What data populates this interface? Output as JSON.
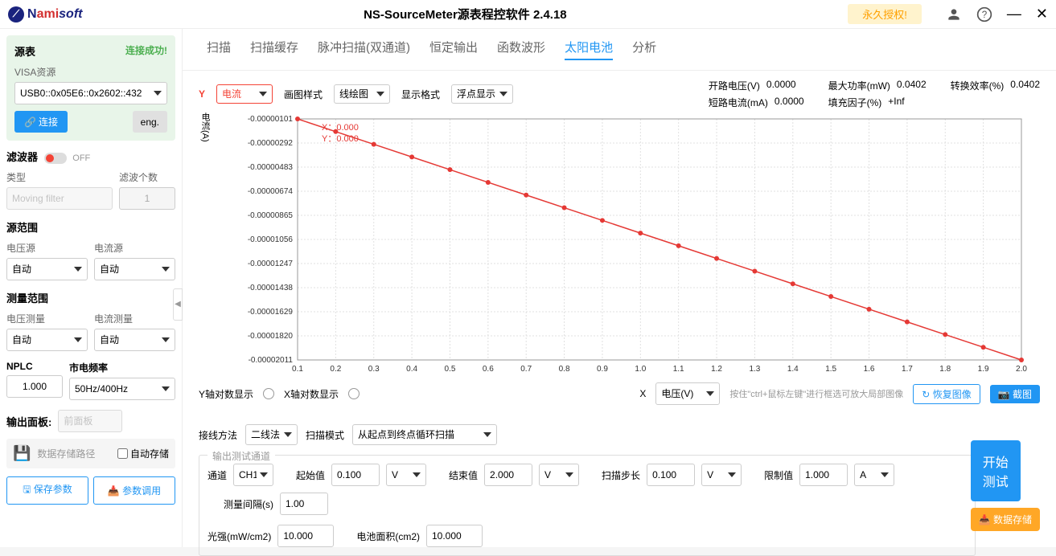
{
  "titlebar": {
    "logo_n": "N",
    "logo_ami": "ami",
    "logo_soft": "soft",
    "app_title": "NS-SourceMeter源表程控软件 2.4.18",
    "license": "永久授权!"
  },
  "sidebar": {
    "source_table": "源表",
    "conn_success": "连接成功!",
    "visa_label": "VISA资源",
    "visa_value": "USB0::0x05E6::0x2602::432",
    "connect_btn": "连接",
    "lang_btn": "eng.",
    "filter": "滤波器",
    "filter_off": "OFF",
    "type_label": "类型",
    "type_value": "Moving filter",
    "filter_count_label": "滤波个数",
    "filter_count_value": "1",
    "source_range": "源范围",
    "vsource_label": "电压源",
    "vsource_value": "自动",
    "isource_label": "电流源",
    "isource_value": "自动",
    "measure_range": "测量范围",
    "vmeas_label": "电压测量",
    "vmeas_value": "自动",
    "imeas_label": "电流测量",
    "imeas_value": "自动",
    "nplc_label": "NPLC",
    "nplc_value": "1.000",
    "freq_label": "市电频率",
    "freq_value": "50Hz/400Hz",
    "output_panel_label": "输出面板:",
    "output_panel_value": "前面板",
    "storage_path": "数据存储路径",
    "auto_save": "自动存储",
    "save_params": "保存参数",
    "load_params": "参数调用"
  },
  "tabs": {
    "t1": "扫描",
    "t2": "扫描缓存",
    "t3": "脉冲扫描(双通道)",
    "t4": "恒定输出",
    "t5": "函数波形",
    "t6": "太阳电池",
    "t7": "分析"
  },
  "chart": {
    "y_label": "Y",
    "y_select": "电流",
    "style_label": "画图样式",
    "style_value": "线绘图",
    "format_label": "显示格式",
    "format_value": "浮点显示",
    "stats": {
      "voc_label": "开路电压(V)",
      "voc": "0.0000",
      "isc_label": "短路电流(mA)",
      "isc": "0.0000",
      "pmax_label": "最大功率(mW)",
      "pmax": "0.0402",
      "ff_label": "填充因子(%)",
      "ff": "+Inf",
      "eff_label": "转换效率(%)",
      "eff": "0.0402"
    },
    "cursor_x": "X：0.000",
    "cursor_y": "Y：0.000",
    "y_axis_name": "电流(A)",
    "y_ticks": [
      "-0.00000101",
      "-0.00000292",
      "-0.00000483",
      "-0.00000674",
      "-0.00000865",
      "-0.00001056",
      "-0.00001247",
      "-0.00001438",
      "-0.00001629",
      "-0.00001820",
      "-0.00002011"
    ],
    "x_ticks": [
      "0.1",
      "0.2",
      "0.3",
      "0.4",
      "0.5",
      "0.6",
      "0.7",
      "0.8",
      "0.9",
      "1.0",
      "1.1",
      "1.2",
      "1.3",
      "1.4",
      "1.5",
      "1.6",
      "1.7",
      "1.8",
      "1.9",
      "2.0"
    ],
    "line_color": "#e53935",
    "grid_color": "#e0e0e0",
    "y_log_label": "Y轴对数显示",
    "x_log_label": "X轴对数显示",
    "x_label": "X",
    "x_select": "电压(V)",
    "hint": "按住\"ctrl+鼠标左键\"进行框选可放大局部图像",
    "restore_btn": "恢复图像",
    "screenshot_btn": "截图"
  },
  "config": {
    "wire_label": "接线方法",
    "wire_value": "二线法",
    "scan_mode_label": "扫描模式",
    "scan_mode_value": "从起点到终点循环扫描",
    "output_channel": "输出测试通道",
    "channel_label": "通道",
    "channel_value": "CH1",
    "start_label": "起始值",
    "start_value": "0.100",
    "start_unit": "V",
    "end_label": "结束值",
    "end_value": "2.000",
    "end_unit": "V",
    "step_label": "扫描步长",
    "step_value": "0.100",
    "step_unit": "V",
    "limit_label": "限制值",
    "limit_value": "1.000",
    "limit_unit": "A",
    "interval_label": "测量间隔(s)",
    "interval_value": "1.00",
    "intensity_label": "光强(mW/cm2)",
    "intensity_value": "10.000",
    "area_label": "电池面积(cm2)",
    "area_value": "10.000"
  },
  "actions": {
    "start": "开始测试",
    "save_data": "数据存储"
  }
}
